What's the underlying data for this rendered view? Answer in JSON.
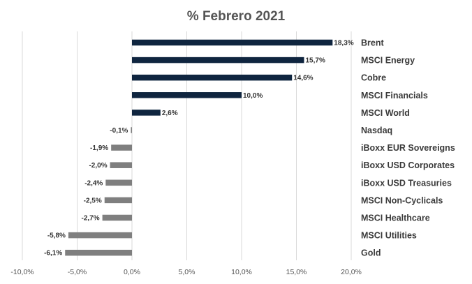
{
  "chart_data": {
    "type": "bar",
    "orientation": "horizontal",
    "title": "% Febrero 2021",
    "categories": [
      "Brent",
      "MSCI Energy",
      "Cobre",
      "MSCI Financials",
      "MSCI World",
      "Nasdaq",
      "iBoxx EUR Sovereigns",
      "iBoxx USD Corporates",
      "iBoxx USD Treasuries",
      "MSCI Non-Cyclicals",
      "MSCI Healthcare",
      "MSCI Utilities",
      "Gold"
    ],
    "values": [
      18.3,
      15.7,
      14.6,
      10.0,
      2.6,
      -0.1,
      -1.9,
      -2.0,
      -2.4,
      -2.5,
      -2.7,
      -5.8,
      -6.1
    ],
    "value_labels": [
      "18,3%",
      "15,7%",
      "14,6%",
      "10,0%",
      "2,6%",
      "-0,1%",
      "-1,9%",
      "-2,0%",
      "-2,4%",
      "-2,5%",
      "-2,7%",
      "-5,8%",
      "-6,1%"
    ],
    "xlim": [
      -10,
      20
    ],
    "xticks": [
      -10,
      -5,
      0,
      5,
      10,
      15,
      20
    ],
    "xtick_labels": [
      "-10,0%",
      "-5,0%",
      "0,0%",
      "5,0%",
      "10,0%",
      "15,0%",
      "20,0%"
    ],
    "grid": "vertical",
    "legend": "none",
    "colors": {
      "positive": "#0f253f",
      "negative": "#7f7f7f",
      "grid": "#d9d9d9"
    }
  }
}
